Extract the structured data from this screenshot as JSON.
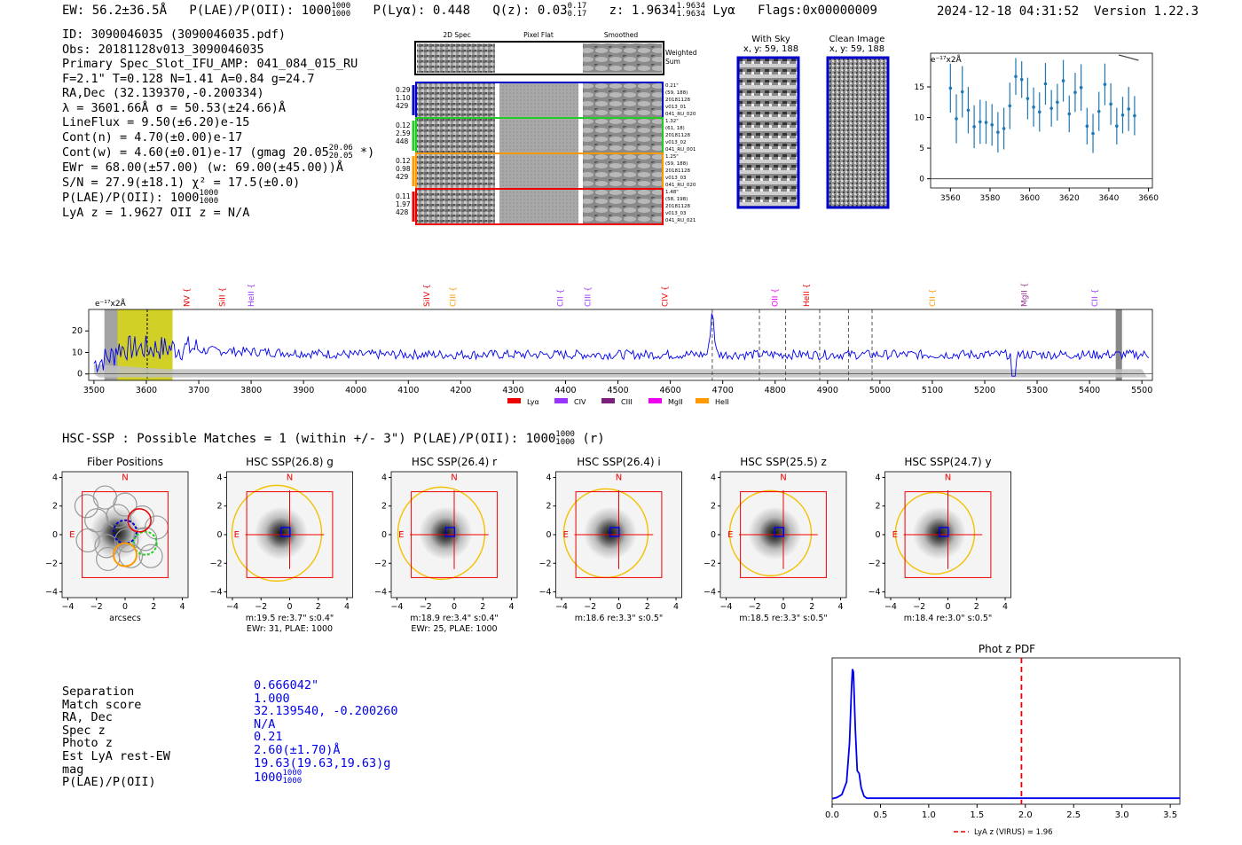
{
  "header": {
    "ew": "EW: 56.2±36.5Å",
    "plae_label": "P(LAE)/P(OII): 1000",
    "plae_sup": "1000",
    "plae_sub": "1000",
    "plya": "P(Lyα): 0.448",
    "qz_label": "Q(z): 0.03",
    "qz_sup": "0.17",
    "qz_sub": "0.17",
    "z_label": "z: 1.9634",
    "z_sup": "1.9634",
    "z_sub": "1.9634",
    "z_line": "Lyα",
    "flags": "Flags:0x00000009",
    "timestamp": "2024-12-18 04:31:52",
    "version": "Version 1.22.3"
  },
  "info": {
    "lines": [
      "ID: 3090046035 (3090046035.pdf)",
      "Obs: 20181128v013_3090046035",
      "Primary Spec_Slot_IFU_AMP: 041_084_015_RU",
      "F=2.1\"  T=0.128  N=1.41  A=0.84  g=24.7",
      "RA,Dec (32.139370,-0.200334)",
      "λ = 3601.66Å  σ = 50.53(±24.66)Å",
      "LineFlux = 9.50(±6.20)e-15",
      "Cont(n) = 4.70(±0.00)e-17",
      "Cont(w) = 4.60(±0.01)e-17 (gmag 20.05",
      "EWr = 68.00(±57.00) (w: 69.00(±45.00))Å",
      "S/N = 27.9(±18.1)  χ² = 17.5(±0.0)",
      "P(LAE)/P(OII): 1000",
      "LyA z = 1.9627  OII z = N/A"
    ],
    "gmag_sup": "20.06",
    "gmag_sub": "20.05",
    "gmag_tail": "*)",
    "plae_sup": "1000",
    "plae_sub": "1000"
  },
  "cutouts": {
    "col_labels": [
      "2D Spec",
      "Pixel Flat",
      "Smoothed"
    ],
    "weighted_label": "Weighted Sum",
    "rows": [
      {
        "left": [
          "0.29",
          "1.10",
          "429"
        ],
        "right": [
          "0.21\"",
          "(59, 188)",
          "20181128",
          "v013_01",
          "041_RU_020"
        ],
        "color": "#0000cc"
      },
      {
        "left": [
          "0.12",
          "2.59",
          "448"
        ],
        "right": [
          "1.32\"",
          "(61, 18)",
          "20181128",
          "v013_02",
          "041_RU_001"
        ],
        "color": "#22cc22"
      },
      {
        "left": [
          "0.12",
          "0.98",
          "429"
        ],
        "right": [
          "1.25\"",
          "(59, 188)",
          "20181128",
          "v013_03",
          "041_RU_020"
        ],
        "color": "#ff9900"
      },
      {
        "left": [
          "0.11",
          "1.97",
          "428"
        ],
        "right": [
          "1.48\"",
          "(58, 198)",
          "20181128",
          "v013_03",
          "041_RU_021"
        ],
        "color": "#ee0000"
      }
    ],
    "with_sky_title": "With Sky",
    "with_sky_xy": "x, y: 59, 188",
    "clean_title": "Clean Image",
    "clean_xy": "x, y: 59, 188"
  },
  "zoom_chart": {
    "type": "scatter",
    "title": "",
    "scale_label": "e⁻¹⁷x2Å",
    "x": [
      3560,
      3563,
      3566,
      3569,
      3572,
      3575,
      3578,
      3581,
      3584,
      3587,
      3590,
      3593,
      3596,
      3599,
      3602,
      3605,
      3608,
      3611,
      3614,
      3617,
      3620,
      3623,
      3626,
      3629,
      3632,
      3635,
      3638,
      3641,
      3644,
      3647,
      3650,
      3653
    ],
    "y": [
      14.8,
      9.8,
      14.2,
      11.2,
      8.5,
      9.3,
      9.2,
      8.8,
      7.6,
      8.2,
      11.9,
      16.7,
      16.2,
      13.1,
      11.7,
      10.9,
      15.5,
      11.5,
      12.5,
      16.0,
      10.6,
      14.1,
      14.9,
      8.6,
      7.4,
      11.0,
      15.4,
      12.2,
      8.6,
      10.4,
      11.4,
      10.3
    ],
    "yerr": [
      4.0,
      4.0,
      4.2,
      3.8,
      3.5,
      3.6,
      3.5,
      3.4,
      3.3,
      3.4,
      3.8,
      3.0,
      3.0,
      3.4,
      3.2,
      3.2,
      3.4,
      3.0,
      3.0,
      3.4,
      3.0,
      3.2,
      3.8,
      3.0,
      3.2,
      3.2,
      3.4,
      3.4,
      3.0,
      3.0,
      3.6,
      3.2
    ],
    "xlim": [
      3550,
      3662
    ],
    "ylim": [
      -1.5,
      20.5
    ],
    "xticks": [
      "3560",
      "3580",
      "3600",
      "3620",
      "3640",
      "3660"
    ],
    "yticks": [
      "0",
      "5",
      "10",
      "15"
    ]
  },
  "spectrum": {
    "type": "line",
    "title": "",
    "scale_label": "e⁻¹⁷x2Å",
    "xlim": [
      3490,
      5520
    ],
    "ylim": [
      -3,
      30
    ],
    "xticks": [
      "3500",
      "3600",
      "3700",
      "3800",
      "3900",
      "4000",
      "4100",
      "4200",
      "4300",
      "4400",
      "4500",
      "4600",
      "4700",
      "4800",
      "4900",
      "5000",
      "5100",
      "5200",
      "5300",
      "5400",
      "5500"
    ],
    "yticks": [
      "0",
      "10",
      "20"
    ],
    "highlight_range": [
      3545,
      3650
    ],
    "line_center": 3601.66,
    "emission_peak": {
      "x": 4680,
      "y": 29
    },
    "dashed_lines": [
      4680,
      4770,
      4820,
      4885,
      4940,
      4985
    ],
    "lines": [
      {
        "name": "NV",
        "x": 3677,
        "color": "#ee0000"
      },
      {
        "name": "SiII",
        "x": 3745,
        "color": "#ee0000"
      },
      {
        "name": "HeII",
        "x": 3800,
        "color": "#9933ff"
      },
      {
        "name": "SiIV",
        "x": 4135,
        "color": "#ee0000"
      },
      {
        "name": "CIII",
        "x": 4185,
        "color": "#ff9900"
      },
      {
        "name": "CII",
        "x": 4390,
        "color": "#9933ff"
      },
      {
        "name": "CIII",
        "x": 4442,
        "color": "#9933ff"
      },
      {
        "name": "CIV",
        "x": 4590,
        "color": "#ee0000"
      },
      {
        "name": "OII",
        "x": 4800,
        "color": "#ee00ee"
      },
      {
        "name": "HeII",
        "x": 4860,
        "color": "#ee0000"
      },
      {
        "name": "CII",
        "x": 5100,
        "color": "#ff9900"
      },
      {
        "name": "MgII",
        "x": 5275,
        "color": "#993399"
      },
      {
        "name": "CII",
        "x": 5410,
        "color": "#9933ff"
      }
    ],
    "legend": [
      {
        "label": "Lyα",
        "color": "#ee0000"
      },
      {
        "label": "CIV",
        "color": "#9933ff"
      },
      {
        "label": "CIII",
        "color": "#7a1f7a"
      },
      {
        "label": "MgII",
        "color": "#ee00ee"
      },
      {
        "label": "HeII",
        "color": "#ff9900"
      }
    ]
  },
  "hsc": {
    "title_text": "HSC-SSP : Possible Matches = 1 (within +/- 3\")  P(LAE)/P(OII): 1000",
    "title_sup": "1000",
    "title_sub": "1000",
    "title_tail": "(r)",
    "fiber_title": "Fiber Positions",
    "fiber_xlabel": "arcsecs",
    "axis_ticks": [
      "−4",
      "−2",
      "0",
      "2",
      "4"
    ],
    "north": "N",
    "east": "E",
    "bands": [
      {
        "title": "HSC SSP(26.8) g",
        "line1": "m:19.5  re:3.7\"  s:0.4\"",
        "line2": "EWr: 31, PLAE: 1000"
      },
      {
        "title": "HSC SSP(26.4) r",
        "line1": "m:18.9  re:3.4\"  s:0.4\"",
        "line2": "EWr: 25, PLAE: 1000"
      },
      {
        "title": "HSC SSP(26.4) i",
        "line1": "m:18.6  re:3.3\"  s:0.5\"",
        "line2": ""
      },
      {
        "title": "HSC SSP(25.5) z",
        "line1": "m:18.5  re:3.3\"  s:0.5\"",
        "line2": ""
      },
      {
        "title": "HSC SSP(24.7) y",
        "line1": "m:18.4  re:3.0\"  s:0.5\"",
        "line2": ""
      }
    ]
  },
  "match": {
    "labels": [
      "Separation",
      "Match score",
      "RA, Dec",
      "Spec z",
      "Photo z",
      "Est LyA rest-EW",
      "mag",
      "P(LAE)/P(OII)"
    ],
    "values": [
      "0.666042\"",
      "1.000",
      "32.139540, -0.200260",
      "N/A",
      "0.21",
      "2.60(±1.70)Å",
      "19.63(19.63,19.63)g",
      "1000"
    ],
    "plae_sup": "1000",
    "plae_sub": "1000"
  },
  "chart_data": [
    {
      "type": "line",
      "title": "Phot z PDF",
      "x": [
        0.0,
        0.05,
        0.1,
        0.15,
        0.18,
        0.2,
        0.21,
        0.22,
        0.24,
        0.26,
        0.28,
        0.3,
        0.33,
        0.36,
        0.4,
        1.0,
        2.0,
        3.0,
        3.6
      ],
      "y": [
        0.002,
        0.01,
        0.03,
        0.12,
        0.4,
        0.78,
        0.92,
        0.9,
        0.5,
        0.2,
        0.18,
        0.08,
        0.02,
        0.005,
        0.005,
        0.005,
        0.005,
        0.005,
        0.005
      ],
      "xlim": [
        0.0,
        3.6
      ],
      "ylim": [
        0.0,
        1.0
      ],
      "xticks": [
        "0.0",
        "0.5",
        "1.0",
        "1.5",
        "2.0",
        "2.5",
        "3.0",
        "3.5"
      ],
      "vline": 1.96,
      "legend": "LyA z (VIRUS) = 1.96"
    }
  ]
}
